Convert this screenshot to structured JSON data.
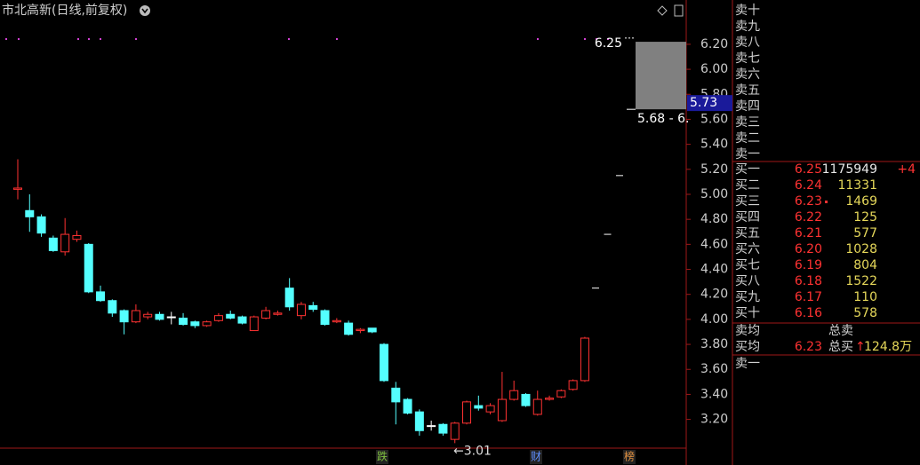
{
  "header": {
    "title": "市北高新(日线,前复权)"
  },
  "chart_data": {
    "type": "candlestick",
    "open": [
      5.04,
      4.87,
      4.82,
      4.65,
      4.54,
      4.64,
      4.6,
      4.22,
      4.15,
      4.07,
      3.98,
      4.02,
      4.04,
      4.02,
      4.01,
      3.98,
      3.95,
      3.99,
      4.04,
      4.02,
      3.91,
      4.01,
      4.04,
      4.25,
      4.03,
      4.11,
      4.07,
      3.98,
      3.97,
      3.91,
      3.93,
      3.8,
      3.45,
      3.36,
      3.26,
      3.15,
      3.16,
      3.04,
      3.17,
      3.31,
      3.26,
      3.19,
      3.36,
      3.4,
      3.24,
      3.36,
      3.38,
      3.44,
      3.51
    ],
    "high": [
      5.28,
      5.0,
      4.84,
      4.67,
      4.81,
      4.71,
      4.61,
      4.27,
      4.16,
      4.08,
      4.12,
      4.06,
      4.06,
      4.06,
      4.05,
      3.99,
      3.99,
      4.05,
      4.07,
      4.03,
      4.03,
      4.1,
      4.07,
      4.33,
      4.14,
      4.14,
      4.08,
      4.01,
      3.99,
      3.93,
      3.93,
      3.81,
      3.5,
      3.37,
      3.28,
      3.19,
      3.17,
      3.18,
      3.35,
      3.39,
      3.33,
      3.58,
      3.51,
      3.41,
      3.43,
      3.39,
      3.44,
      3.52,
      3.86
    ],
    "low": [
      4.96,
      4.7,
      4.66,
      4.54,
      4.51,
      4.62,
      4.21,
      4.14,
      4.02,
      3.88,
      3.97,
      4.0,
      3.99,
      3.96,
      3.95,
      3.93,
      3.94,
      3.98,
      4.0,
      3.96,
      3.91,
      4.0,
      4.03,
      4.07,
      4.0,
      4.06,
      3.95,
      3.97,
      3.87,
      3.89,
      3.89,
      3.5,
      3.16,
      3.24,
      3.07,
      3.11,
      3.07,
      3.01,
      3.16,
      3.27,
      3.24,
      3.18,
      3.35,
      3.3,
      3.23,
      3.35,
      3.37,
      3.43,
      3.5
    ],
    "close": [
      5.05,
      4.82,
      4.69,
      4.55,
      4.68,
      4.67,
      4.22,
      4.15,
      4.05,
      3.98,
      4.07,
      4.04,
      4.0,
      4.02,
      3.96,
      3.95,
      3.98,
      4.03,
      4.01,
      3.97,
      4.02,
      4.07,
      4.05,
      4.1,
      4.12,
      4.08,
      3.96,
      3.99,
      3.88,
      3.92,
      3.9,
      3.51,
      3.34,
      3.25,
      3.11,
      3.15,
      3.09,
      3.17,
      3.34,
      3.29,
      3.31,
      3.36,
      3.43,
      3.31,
      3.36,
      3.37,
      3.43,
      3.51,
      3.85
    ],
    "up_color": "#ff3232",
    "down_color": "#54ffff",
    "flat_color": "#ffffff",
    "ylim": [
      2.97,
      6.54
    ],
    "yticks": [
      {
        "value": 3.2,
        "label": "3.20"
      },
      {
        "value": 3.4,
        "label": "3.40"
      },
      {
        "value": 3.6,
        "label": "3.60"
      },
      {
        "value": 3.8,
        "label": "3.80"
      },
      {
        "value": 4.0,
        "label": "4.00"
      },
      {
        "value": 4.2,
        "label": "4.20"
      },
      {
        "value": 4.4,
        "label": "4.40"
      },
      {
        "value": 4.6,
        "label": "4.60"
      },
      {
        "value": 4.8,
        "label": "4.80"
      },
      {
        "value": 5.0,
        "label": "5.00"
      },
      {
        "value": 5.2,
        "label": "5.20"
      },
      {
        "value": 5.4,
        "label": "5.40"
      },
      {
        "value": 5.6,
        "label": "5.60"
      },
      {
        "value": 5.8,
        "label": "5.80"
      },
      {
        "value": 6.0,
        "label": "6.00"
      },
      {
        "value": 6.2,
        "label": "6.20"
      }
    ],
    "current_price": 5.73,
    "low_annotation": {
      "value": 3.01,
      "label": "←3.01"
    },
    "high_annotation": 6.25,
    "range_box": {
      "low": 5.68,
      "high": 6.22,
      "label": "5.68 - 6."
    },
    "projection_marks": [
      4.25,
      4.68,
      5.15
    ],
    "event_markers": [
      "跌",
      "财",
      "榜"
    ]
  },
  "order_book": {
    "asks": [
      "卖十",
      "卖九",
      "卖八",
      "卖七",
      "卖六",
      "卖五",
      "卖四",
      "卖三",
      "卖二",
      "卖一"
    ],
    "bids": [
      {
        "label": "买一",
        "price": "6.25",
        "volume": 1175949,
        "change": "+4"
      },
      {
        "label": "买二",
        "price": "6.24",
        "volume": 11331
      },
      {
        "label": "买三",
        "price": "6.23",
        "volume": 1469
      },
      {
        "label": "买四",
        "price": "6.22",
        "volume": 125
      },
      {
        "label": "买五",
        "price": "6.21",
        "volume": 577
      },
      {
        "label": "买六",
        "price": "6.20",
        "volume": 1028
      },
      {
        "label": "买七",
        "price": "6.19",
        "volume": 804
      },
      {
        "label": "买八",
        "price": "6.18",
        "volume": 1522
      },
      {
        "label": "买九",
        "price": "6.17",
        "volume": 110
      },
      {
        "label": "买十",
        "price": "6.16",
        "volume": 578
      }
    ],
    "avg_sell_label": "卖均",
    "total_sell_label": "总卖",
    "avg_buy_label": "买均",
    "avg_buy": "6.23",
    "total_buy_label": "总买",
    "total_buy_arrow": "↑",
    "total_buy": "124.8万",
    "last_row": "卖一"
  }
}
